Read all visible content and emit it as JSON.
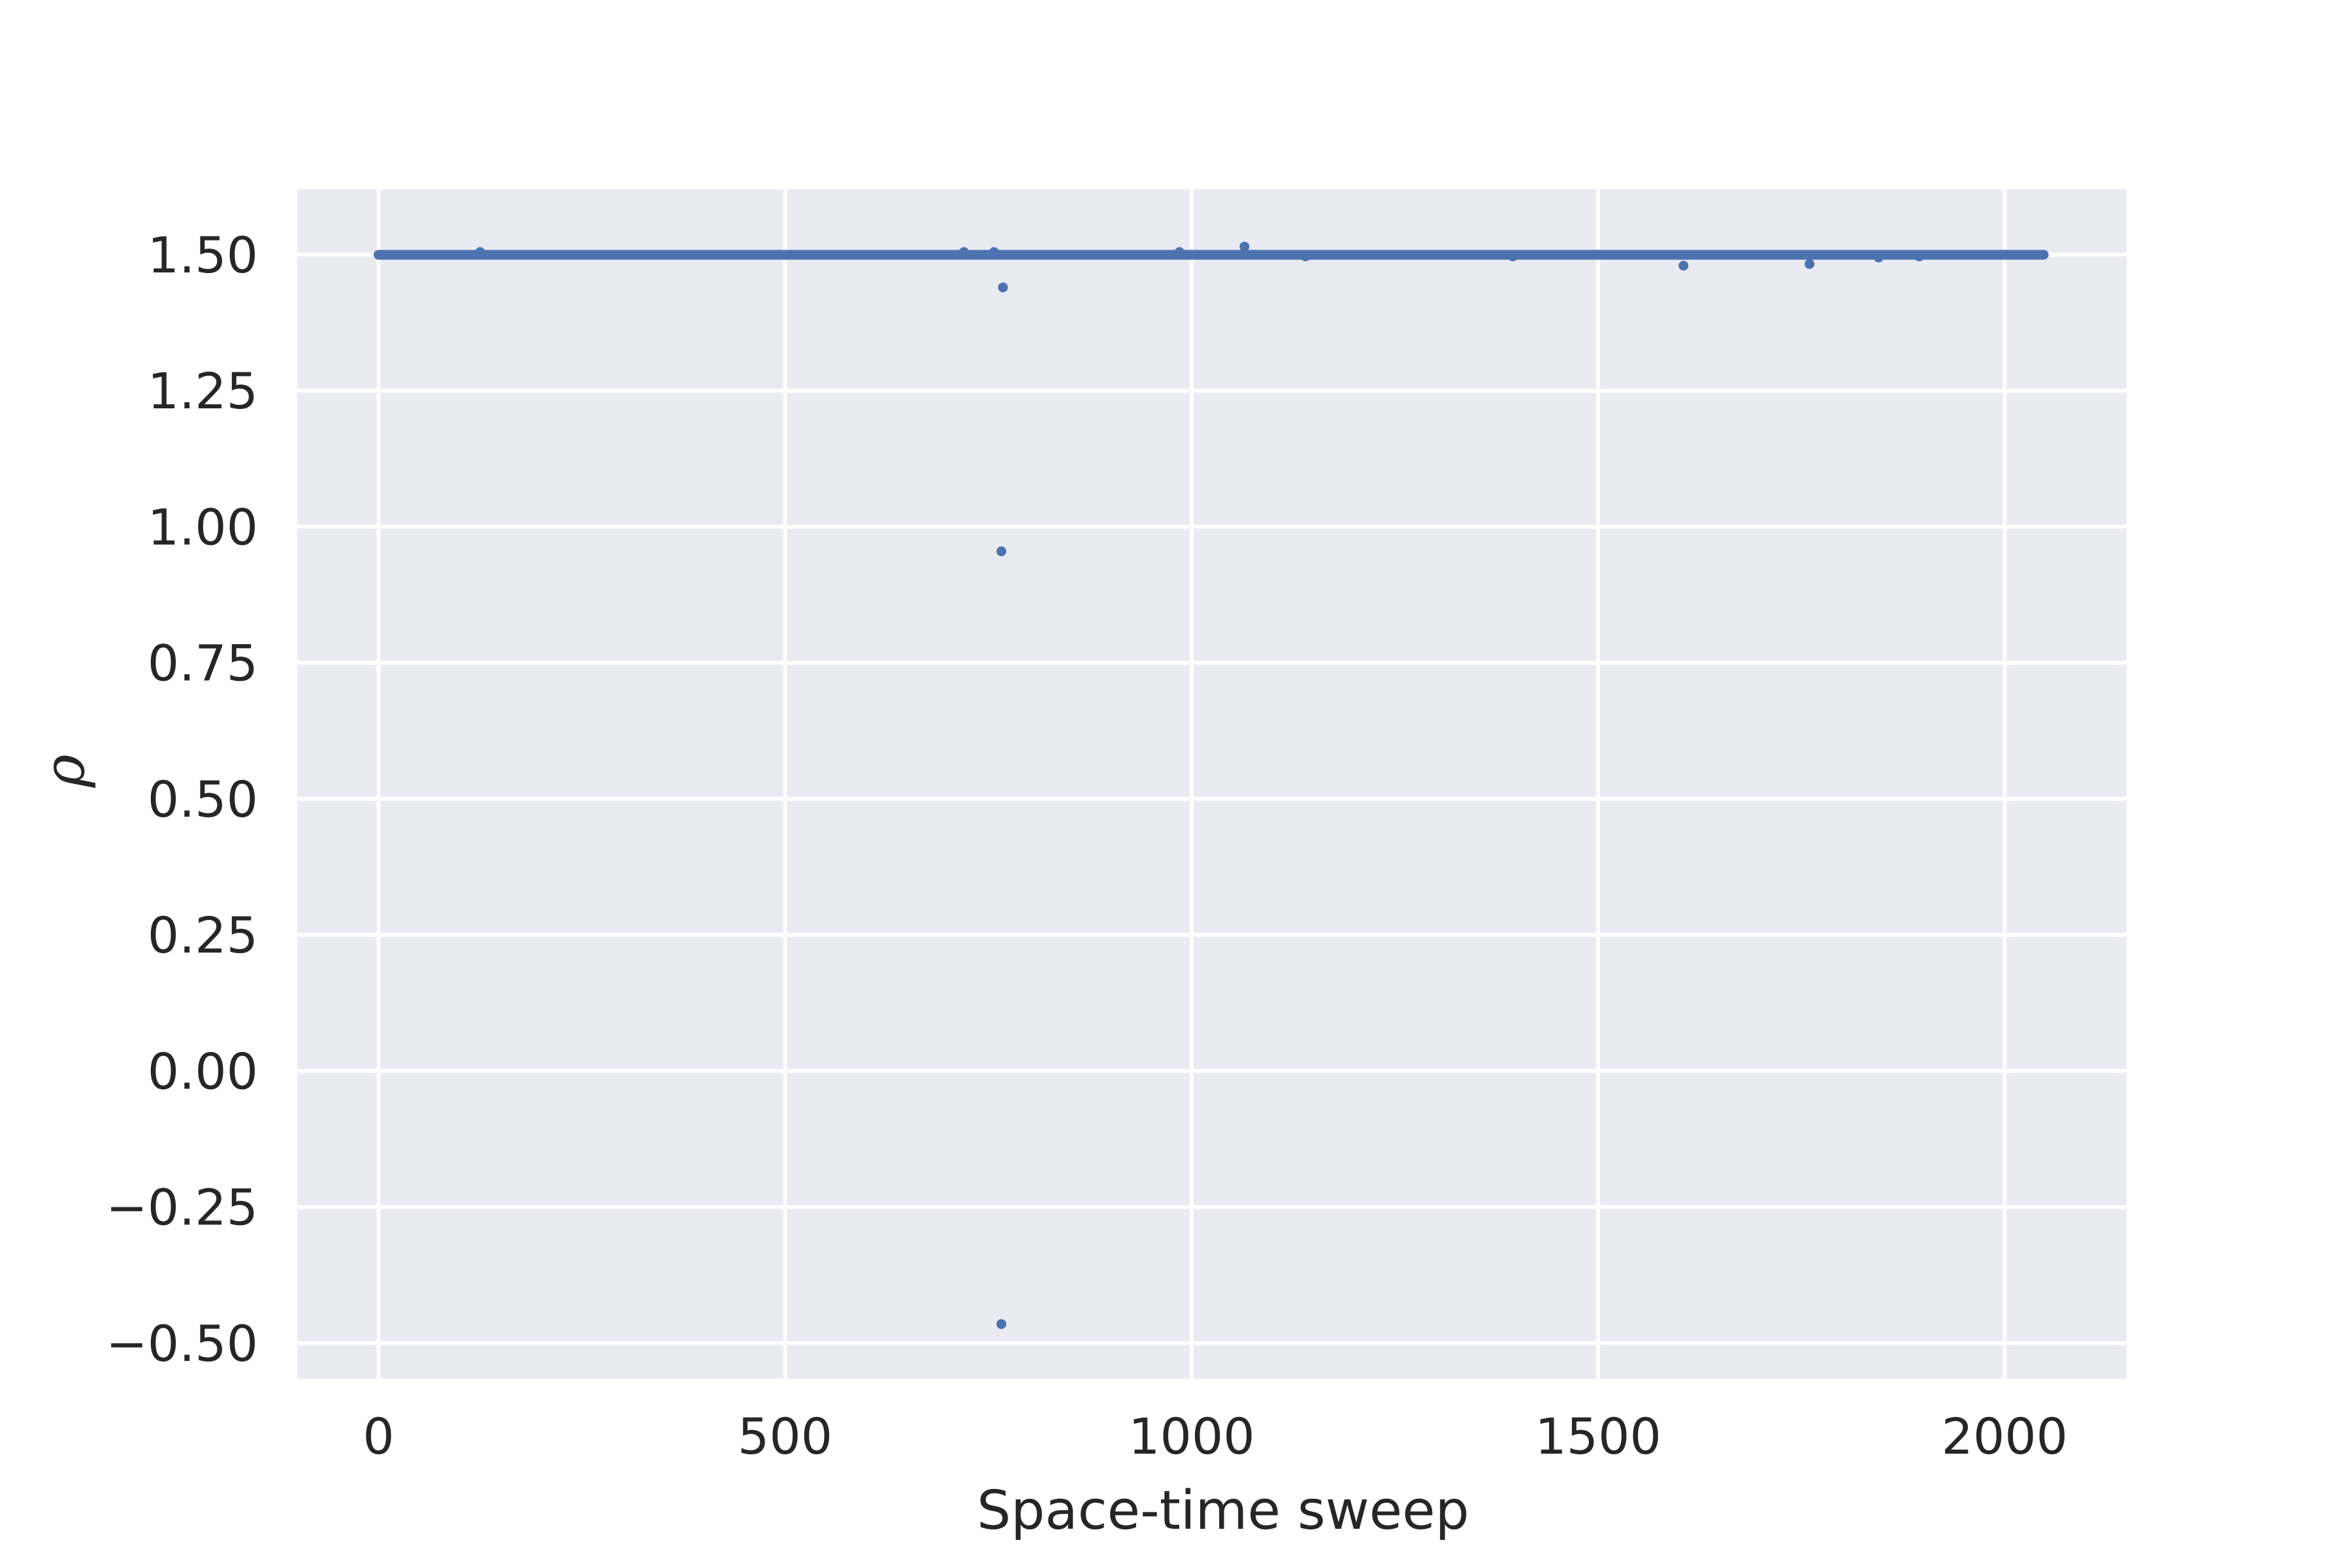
{
  "chart_data": {
    "type": "scatter",
    "xlabel": "Space-time sweep",
    "ylabel": "ρ",
    "xlim": [
      -100,
      2150
    ],
    "ylim": [
      -0.565,
      1.62
    ],
    "x_ticks": [
      0,
      500,
      1000,
      1500,
      2000
    ],
    "x_tick_labels": [
      "0",
      "500",
      "1000",
      "1500",
      "2000"
    ],
    "y_ticks": [
      -0.5,
      -0.25,
      0.0,
      0.25,
      0.5,
      0.75,
      1.0,
      1.25,
      1.5
    ],
    "y_tick_labels": [
      "−0.50",
      "−0.25",
      "0.00",
      "0.25",
      "0.50",
      "0.75",
      "1.00",
      "1.25",
      "1.50"
    ],
    "grid": true,
    "background_color": "#eaeaf2",
    "grid_color": "#ffffff",
    "series": [
      {
        "color": "#4c72b0",
        "baseline": {
          "x_start": 0,
          "x_end": 2048,
          "y": 1.5
        },
        "outliers": [
          {
            "x": 125,
            "y": 1.505
          },
          {
            "x": 720,
            "y": 1.505
          },
          {
            "x": 757,
            "y": 1.505
          },
          {
            "x": 768,
            "y": 1.44
          },
          {
            "x": 766,
            "y": 0.955
          },
          {
            "x": 766,
            "y": -0.465
          },
          {
            "x": 985,
            "y": 1.505
          },
          {
            "x": 1065,
            "y": 1.515
          },
          {
            "x": 1140,
            "y": 1.497
          },
          {
            "x": 1395,
            "y": 1.497
          },
          {
            "x": 1605,
            "y": 1.48
          },
          {
            "x": 1760,
            "y": 1.483
          },
          {
            "x": 1845,
            "y": 1.495
          },
          {
            "x": 1895,
            "y": 1.497
          }
        ]
      }
    ]
  }
}
